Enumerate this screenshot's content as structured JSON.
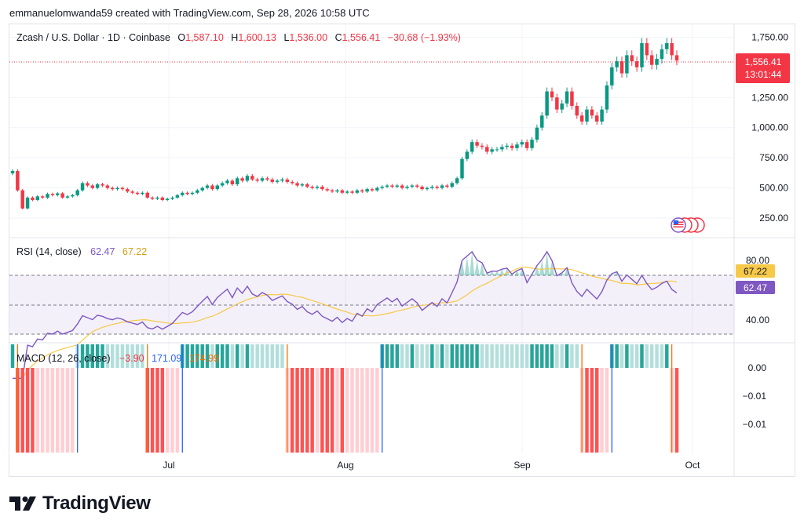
{
  "header": {
    "attribution": "emmanuelomwanda59 created with TradingView.com, Sep 28, 2026 10:58 UTC"
  },
  "branding": {
    "logo_text": "TradingView"
  },
  "colors": {
    "up": "#089981",
    "down": "#f23645",
    "rsi": "#7e57c2",
    "rsi_ma": "#f7c948",
    "hist_up_strong": "#26a69a",
    "hist_up_weak": "#b2dfdb",
    "hist_down_strong": "#ff5252",
    "hist_down_weak": "#ffcdd2",
    "macd_line": "#2962ff",
    "signal_line": "#ff6d00"
  },
  "main_legend": {
    "symbol": "Zcash / U.S. Dollar · 1D · Coinbase",
    "o_label": "O",
    "o_value": "1,587.10",
    "h_label": "H",
    "h_value": "1,600.13",
    "l_label": "L",
    "l_value": "1,536.00",
    "c_label": "C",
    "c_value": "1,556.41",
    "change": "−30.68 (−1.93%)"
  },
  "price_badge": {
    "price": "1,556.41",
    "countdown": "13:01:44"
  },
  "rsi_legend": {
    "name": "RSI (14, close)",
    "value": "62.47",
    "ma_value": "67.22"
  },
  "macd_legend": {
    "name": "MACD (12, 26, close)",
    "hist": "−3.90",
    "macd": "171.09",
    "signal": "174.99"
  },
  "chart_data": [
    {
      "type": "candlestick",
      "title": "Zcash / U.S. Dollar · 1D · Coinbase",
      "y_ticks": [
        "1,750.00",
        "1,250.00",
        "1,000.00",
        "750.00",
        "500.00",
        "250.00"
      ],
      "x_ticks": [
        "Jul",
        "Aug",
        "Sep",
        "Oct"
      ],
      "last_price": 1556.41,
      "close_series": [
        640,
        480,
        330,
        420,
        400,
        430,
        420,
        450,
        440,
        455,
        420,
        430,
        440,
        480,
        540,
        520,
        500,
        530,
        520,
        500,
        490,
        500,
        490,
        470,
        460,
        450,
        460,
        420,
        410,
        420,
        400,
        410,
        420,
        440,
        460,
        450,
        460,
        480,
        500,
        520,
        490,
        520,
        540,
        560,
        530,
        580,
        560,
        600,
        570,
        560,
        580,
        570,
        550,
        560,
        570,
        550,
        540,
        520,
        530,
        510,
        500,
        510,
        490,
        480,
        470,
        480,
        460,
        470,
        460,
        480,
        470,
        490,
        480,
        500,
        510,
        520,
        510,
        520,
        500,
        510,
        520,
        510,
        490,
        500,
        510,
        500,
        520,
        510,
        540,
        580,
        740,
        800,
        880,
        850,
        840,
        800,
        820,
        820,
        840,
        850,
        830,
        860,
        880,
        830,
        900,
        1000,
        1100,
        1300,
        1250,
        1150,
        1200,
        1300,
        1180,
        1100,
        1050,
        1150,
        1100,
        1050,
        1150,
        1350,
        1500,
        1550,
        1450,
        1600,
        1550,
        1500,
        1700,
        1600,
        1520,
        1570,
        1650,
        1700,
        1600,
        1556
      ]
    },
    {
      "type": "line",
      "title": "RSI (14, close)",
      "y_ticks": [
        "80.00",
        "40.00"
      ],
      "series": [
        {
          "name": "RSI",
          "last": 62.47
        },
        {
          "name": "RSI MA",
          "last": 67.22
        }
      ]
    },
    {
      "type": "bar",
      "title": "MACD (12, 26, close)",
      "y_ticks": [
        "0.00",
        "−0.01",
        "−0.01"
      ],
      "series": [
        {
          "name": "Histogram",
          "last": -3.9
        },
        {
          "name": "MACD",
          "last": 171.09
        },
        {
          "name": "Signal",
          "last": 174.99
        }
      ]
    }
  ]
}
